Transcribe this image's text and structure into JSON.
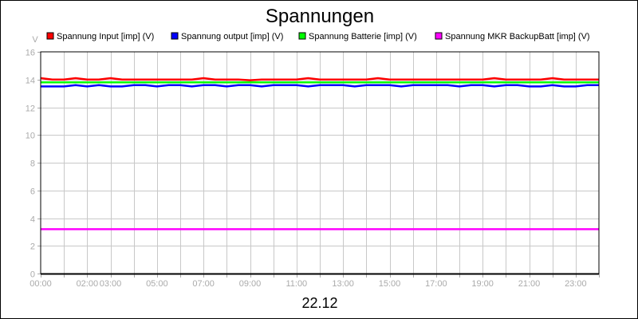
{
  "chart_data": {
    "type": "line",
    "title": "Spannungen",
    "xlabel": "22.12",
    "ylabel": "V",
    "ylim": [
      0,
      16
    ],
    "yticks": [
      0,
      2,
      4,
      6,
      8,
      10,
      12,
      14,
      16
    ],
    "xlim_hours": [
      0,
      24
    ],
    "xtick_labels": [
      {
        "label": "00:00",
        "hour": 0
      },
      {
        "label": "02:00",
        "hour": 2
      },
      {
        "label": "03:00",
        "hour": 3
      },
      {
        "label": "05:00",
        "hour": 5
      },
      {
        "label": "07:00",
        "hour": 7
      },
      {
        "label": "09:00",
        "hour": 9
      },
      {
        "label": "11:00",
        "hour": 11
      },
      {
        "label": "13:00",
        "hour": 13
      },
      {
        "label": "15:00",
        "hour": 15
      },
      {
        "label": "17:00",
        "hour": 17
      },
      {
        "label": "19:00",
        "hour": 19
      },
      {
        "label": "21:00",
        "hour": 21
      },
      {
        "label": "23:00",
        "hour": 23
      }
    ],
    "grid": true,
    "legend": "top",
    "x_hours": [
      0,
      0.5,
      1,
      1.5,
      2,
      2.5,
      3,
      3.5,
      4,
      4.5,
      5,
      5.5,
      6,
      6.5,
      7,
      7.5,
      8,
      8.5,
      9,
      9.5,
      10,
      10.5,
      11,
      11.5,
      12,
      12.5,
      13,
      13.5,
      14,
      14.5,
      15,
      15.5,
      16,
      16.5,
      17,
      17.5,
      18,
      18.5,
      19,
      19.5,
      20,
      20.5,
      21,
      21.5,
      22,
      22.5,
      23,
      23.5,
      24
    ],
    "series": [
      {
        "name": "Spannung Input [imp] (V)",
        "color": "#ff0000",
        "values": [
          14.1,
          14.0,
          14.0,
          14.1,
          14.0,
          14.0,
          14.1,
          14.0,
          14.0,
          14.0,
          14.0,
          14.0,
          14.0,
          14.0,
          14.1,
          14.0,
          14.0,
          14.0,
          13.95,
          14.0,
          14.0,
          14.0,
          14.0,
          14.1,
          14.0,
          14.0,
          14.0,
          14.0,
          14.0,
          14.1,
          14.0,
          14.0,
          14.0,
          14.0,
          14.0,
          14.0,
          14.0,
          14.0,
          14.0,
          14.1,
          14.0,
          14.0,
          14.0,
          14.0,
          14.1,
          14.0,
          14.0,
          14.0,
          14.0
        ]
      },
      {
        "name": "Spannung output [imp] (V)",
        "color": "#0000ff",
        "values": [
          13.5,
          13.5,
          13.5,
          13.6,
          13.5,
          13.6,
          13.5,
          13.5,
          13.6,
          13.6,
          13.5,
          13.6,
          13.6,
          13.5,
          13.6,
          13.6,
          13.5,
          13.6,
          13.6,
          13.5,
          13.6,
          13.6,
          13.6,
          13.5,
          13.6,
          13.6,
          13.6,
          13.5,
          13.6,
          13.6,
          13.6,
          13.5,
          13.6,
          13.6,
          13.6,
          13.6,
          13.5,
          13.6,
          13.6,
          13.5,
          13.6,
          13.6,
          13.5,
          13.5,
          13.6,
          13.5,
          13.5,
          13.6,
          13.6
        ]
      },
      {
        "name": "Spannung Batterie [imp] (V)",
        "color": "#00ff00",
        "values": [
          13.8,
          13.8,
          13.8,
          13.8,
          13.8,
          13.8,
          13.8,
          13.8,
          13.8,
          13.8,
          13.8,
          13.8,
          13.8,
          13.8,
          13.8,
          13.8,
          13.8,
          13.8,
          13.8,
          13.8,
          13.8,
          13.8,
          13.8,
          13.8,
          13.8,
          13.8,
          13.8,
          13.8,
          13.8,
          13.8,
          13.8,
          13.8,
          13.8,
          13.8,
          13.8,
          13.8,
          13.8,
          13.8,
          13.8,
          13.8,
          13.8,
          13.8,
          13.8,
          13.8,
          13.8,
          13.8,
          13.8,
          13.8,
          13.8
        ]
      },
      {
        "name": "Spannung MKR BackupBatt [imp] (V)",
        "color": "#ff00ff",
        "values": [
          3.2,
          3.2,
          3.2,
          3.2,
          3.2,
          3.2,
          3.2,
          3.2,
          3.2,
          3.2,
          3.2,
          3.2,
          3.2,
          3.2,
          3.2,
          3.2,
          3.2,
          3.2,
          3.2,
          3.2,
          3.2,
          3.2,
          3.2,
          3.2,
          3.2,
          3.2,
          3.2,
          3.2,
          3.2,
          3.2,
          3.2,
          3.2,
          3.2,
          3.2,
          3.2,
          3.2,
          3.2,
          3.2,
          3.2,
          3.2,
          3.2,
          3.2,
          3.2,
          3.2,
          3.2,
          3.2,
          3.2,
          3.2,
          3.2
        ]
      }
    ]
  }
}
